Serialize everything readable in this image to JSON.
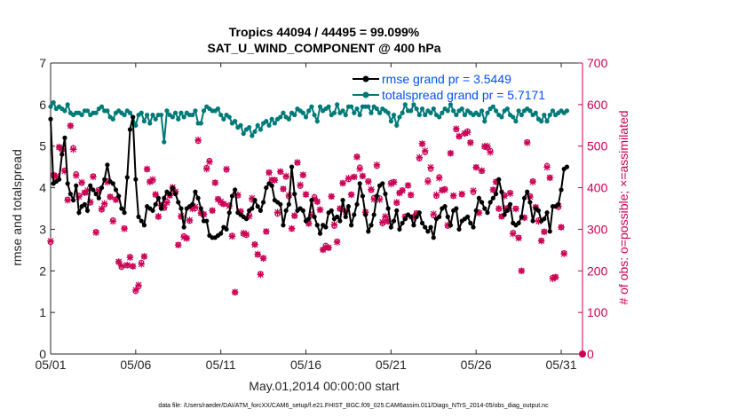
{
  "chart_data": {
    "type": "line",
    "title": "Tropics 44094 / 44495 = 99.099%",
    "subtitle": "SAT_U_WIND_COMPONENT @ 400 hPa",
    "xlabel": "May.01,2014 00:00:00 start",
    "ylabel": "rmse and totalspread",
    "ylabel_right": "# of obs: o=possible; ×=assimilated",
    "ylim": [
      0,
      7
    ],
    "ylim_right": [
      0,
      700
    ],
    "xlim": [
      1,
      32.25
    ],
    "x_ticks": [
      1,
      6,
      11,
      16,
      21,
      26,
      31
    ],
    "x_tick_labels": [
      "05/01",
      "05/06",
      "05/11",
      "05/16",
      "05/21",
      "05/26",
      "05/31"
    ],
    "y_ticks": [
      "0",
      "1",
      "2",
      "3",
      "4",
      "5",
      "6",
      "7"
    ],
    "y_ticks_right": [
      "0",
      "100",
      "200",
      "300",
      "400",
      "500",
      "600",
      "700"
    ],
    "legend_position": "top-right",
    "series": [
      {
        "name": "rmse grand pr = 3.5449",
        "color": "#000000",
        "axis": "left",
        "values": [
          5.65,
          4.1,
          4.15,
          4.2,
          4.8,
          5.2,
          4.1,
          3.85,
          3.7,
          4.05,
          3.4,
          3.55,
          3.6,
          3.45,
          4.05,
          3.95,
          3.85,
          3.75,
          4.0,
          4.2,
          4.55,
          4.15,
          4.1,
          3.95,
          3.8,
          3.5,
          3.4,
          4.25,
          5.4,
          5.7,
          4.2,
          3.3,
          3.2,
          3.1,
          3.55,
          3.5,
          3.45,
          3.6,
          3.75,
          3.5,
          3.75,
          3.9,
          3.85,
          4.0,
          3.85,
          3.65,
          3.5,
          3.05,
          3.5,
          3.55,
          3.6,
          3.9,
          3.75,
          3.5,
          3.2,
          3.2,
          2.85,
          2.8,
          2.8,
          2.85,
          2.9,
          3.05,
          3.0,
          3.4,
          3.8,
          3.95,
          3.4,
          3.35,
          3.3,
          3.25,
          3.45,
          3.5,
          3.7,
          3.55,
          3.45,
          3.65,
          4.0,
          4.1,
          4.05,
          3.7,
          3.65,
          3.6,
          3.1,
          3.45,
          3.6,
          4.5,
          3.85,
          3.45,
          3.5,
          3.45,
          3.2,
          3.25,
          3.7,
          3.3,
          3.1,
          2.9,
          3.1,
          3.05,
          3.4,
          3.45,
          3.25,
          3.3,
          3.2,
          3.7,
          3.3,
          3.55,
          3.1,
          3.35,
          3.6,
          4.1,
          3.8,
          3.35,
          2.95,
          3.1,
          3.35,
          3.8,
          4.05,
          4.1,
          3.85,
          3.5,
          3.05,
          3.2,
          3.45,
          3.0,
          3.15,
          3.25,
          3.35,
          3.3,
          3.1,
          3.3,
          3.4,
          3.15,
          3.05,
          2.95,
          3.05,
          2.8,
          3.25,
          3.3,
          3.5,
          3.55,
          3.3,
          3.1,
          3.45,
          3.5,
          3.0,
          3.2,
          3.25,
          3.3,
          3.15,
          3.05,
          3.45,
          3.75,
          3.65,
          3.5,
          3.4,
          3.65,
          3.75,
          3.85,
          4.2,
          3.9,
          3.35,
          3.45,
          3.6,
          3.15,
          3.1,
          3.15,
          3.3,
          3.75,
          3.9,
          3.65,
          3.2,
          3.5,
          3.45,
          3.2,
          3.25,
          3.4,
          2.95,
          3.55,
          3.55,
          3.6,
          3.95,
          4.45,
          4.5
        ]
      },
      {
        "name": "totalspread grand pr = 5.7171",
        "color": "#007a78",
        "axis": "left",
        "values": [
          5.95,
          6.05,
          5.9,
          5.95,
          5.9,
          5.85,
          6.0,
          5.8,
          5.75,
          5.8,
          5.8,
          5.75,
          5.85,
          5.85,
          5.75,
          5.8,
          5.8,
          5.9,
          5.95,
          5.85,
          5.85,
          5.7,
          5.65,
          5.8,
          5.85,
          5.8,
          5.75,
          5.85,
          5.8,
          5.7,
          5.5,
          5.75,
          5.8,
          5.6,
          5.75,
          5.55,
          5.75,
          5.65,
          5.75,
          5.75,
          5.1,
          5.85,
          5.75,
          5.7,
          5.8,
          5.65,
          5.8,
          5.7,
          5.8,
          5.75,
          5.75,
          5.85,
          5.55,
          5.55,
          5.85,
          5.95,
          5.9,
          5.85,
          5.85,
          5.9,
          5.75,
          5.65,
          5.75,
          5.7,
          5.55,
          5.6,
          5.45,
          5.5,
          5.3,
          5.4,
          5.45,
          5.25,
          5.35,
          5.5,
          5.4,
          5.55,
          5.6,
          5.5,
          5.65,
          5.55,
          5.65,
          5.7,
          5.8,
          5.7,
          5.65,
          5.8,
          5.75,
          5.9,
          5.85,
          5.8,
          5.7,
          5.85,
          5.95,
          5.75,
          5.6,
          5.95,
          5.85,
          5.9,
          5.95,
          5.75,
          5.8,
          6.0,
          5.8,
          5.85,
          5.75,
          5.95,
          5.95,
          5.8,
          5.9,
          5.75,
          5.95,
          5.95,
          5.95,
          5.8,
          5.95,
          5.9,
          5.8,
          5.9,
          5.85,
          5.8,
          5.6,
          5.75,
          5.5,
          5.7,
          5.8,
          6.0,
          5.85,
          5.85,
          6.0,
          5.9,
          5.75,
          5.9,
          5.75,
          5.85,
          5.8,
          5.9,
          5.75,
          5.7,
          5.8,
          5.9,
          5.85,
          6.0,
          5.85,
          5.75,
          5.85,
          5.9,
          5.75,
          5.85,
          5.8,
          5.75,
          5.8,
          5.75,
          5.85,
          5.6,
          5.8,
          5.9,
          5.95,
          5.85,
          5.75,
          5.7,
          5.85,
          5.9,
          5.75,
          5.7,
          5.6,
          5.85,
          5.75,
          5.85,
          5.9,
          5.85,
          5.75,
          5.8,
          5.65,
          5.6,
          5.75,
          5.6,
          5.75,
          5.85,
          5.75,
          5.8,
          5.85,
          5.8,
          5.85
        ]
      }
    ],
    "obs_possible": [
      269,
      431,
      425,
      497,
      491,
      442,
      372,
      549,
      496,
      433,
      381,
      411,
      388,
      390,
      364,
      428,
      294,
      395,
      347,
      359,
      416,
      378,
      322,
      372,
      221,
      209,
      303,
      213,
      234,
      211,
      151,
      162,
      220,
      234,
      444,
      415,
      417,
      383,
      330,
      358,
      351,
      367,
      382,
      398,
      389,
      263,
      330,
      284,
      279,
      320,
      352,
      350,
      512,
      339,
      336,
      448,
      465,
      345,
      412,
      373,
      364,
      361,
      443,
      358,
      285,
      148,
      381,
      343,
      289,
      286,
      335,
      371,
      264,
      239,
      193,
      231,
      294,
      437,
      418,
      419,
      337,
      438,
      397,
      426,
      379,
      301,
      332,
      460,
      404,
      430,
      384,
      314,
      336,
      378,
      366,
      347,
      251,
      261,
      255,
      379,
      308,
      271,
      349,
      411,
      344,
      420,
      384,
      426,
      475,
      449,
      428,
      342,
      416,
      394,
      376,
      452,
      375,
      314,
      327,
      319,
      412,
      414,
      363,
      388,
      394,
      331,
      405,
      382,
      330,
      339,
      470,
      505,
      485,
      418,
      445,
      333,
      380,
      426,
      394,
      397,
      308,
      483,
      380,
      540,
      523,
      384,
      530,
      536,
      509,
      389,
      449,
      341,
      440,
      498,
      496,
      489,
      395,
      414,
      349,
      331,
      382,
      351,
      388,
      292,
      350,
      280,
      200,
      328,
      510,
      380,
      416,
      353,
      322,
      273,
      294,
      453,
      424,
      184,
      185,
      353,
      305,
      243
    ],
    "obs_assimilated": [
      272,
      429,
      428,
      498,
      493,
      440,
      370,
      549,
      492,
      429,
      378,
      413,
      388,
      394,
      366,
      426,
      292,
      393,
      349,
      362,
      413,
      378,
      319,
      371,
      222,
      212,
      301,
      214,
      232,
      211,
      154,
      166,
      216,
      235,
      445,
      414,
      420,
      384,
      331,
      357,
      353,
      364,
      381,
      401,
      391,
      262,
      332,
      281,
      278,
      322,
      349,
      354,
      515,
      339,
      336,
      445,
      462,
      345,
      412,
      372,
      367,
      361,
      445,
      356,
      283,
      149,
      383,
      343,
      291,
      288,
      331,
      375,
      263,
      240,
      191,
      230,
      295,
      436,
      419,
      418,
      341,
      439,
      397,
      428,
      382,
      302,
      333,
      461,
      407,
      431,
      384,
      314,
      334,
      374,
      367,
      347,
      251,
      257,
      256,
      379,
      312,
      269,
      350,
      411,
      342,
      423,
      383,
      426,
      474,
      445,
      428,
      341,
      414,
      396,
      372,
      455,
      371,
      317,
      331,
      319,
      409,
      413,
      365,
      387,
      393,
      330,
      406,
      383,
      329,
      338,
      473,
      506,
      489,
      414,
      449,
      337,
      383,
      423,
      394,
      395,
      310,
      483,
      381,
      542,
      524,
      385,
      531,
      533,
      508,
      393,
      449,
      339,
      441,
      500,
      500,
      485,
      395,
      414,
      350,
      331,
      380,
      351,
      386,
      289,
      349,
      279,
      200,
      328,
      508,
      378,
      414,
      353,
      319,
      272,
      294,
      449,
      424,
      181,
      185,
      356,
      305,
      241
    ]
  },
  "footer": "data file: /Users/raeder/DAI/ATM_forcXX/CAM6_setup/f.e21.FHIST_BGC.f09_025.CAM6assim.011/Diags_NTrS_2014-05/obs_diag_output.nc"
}
